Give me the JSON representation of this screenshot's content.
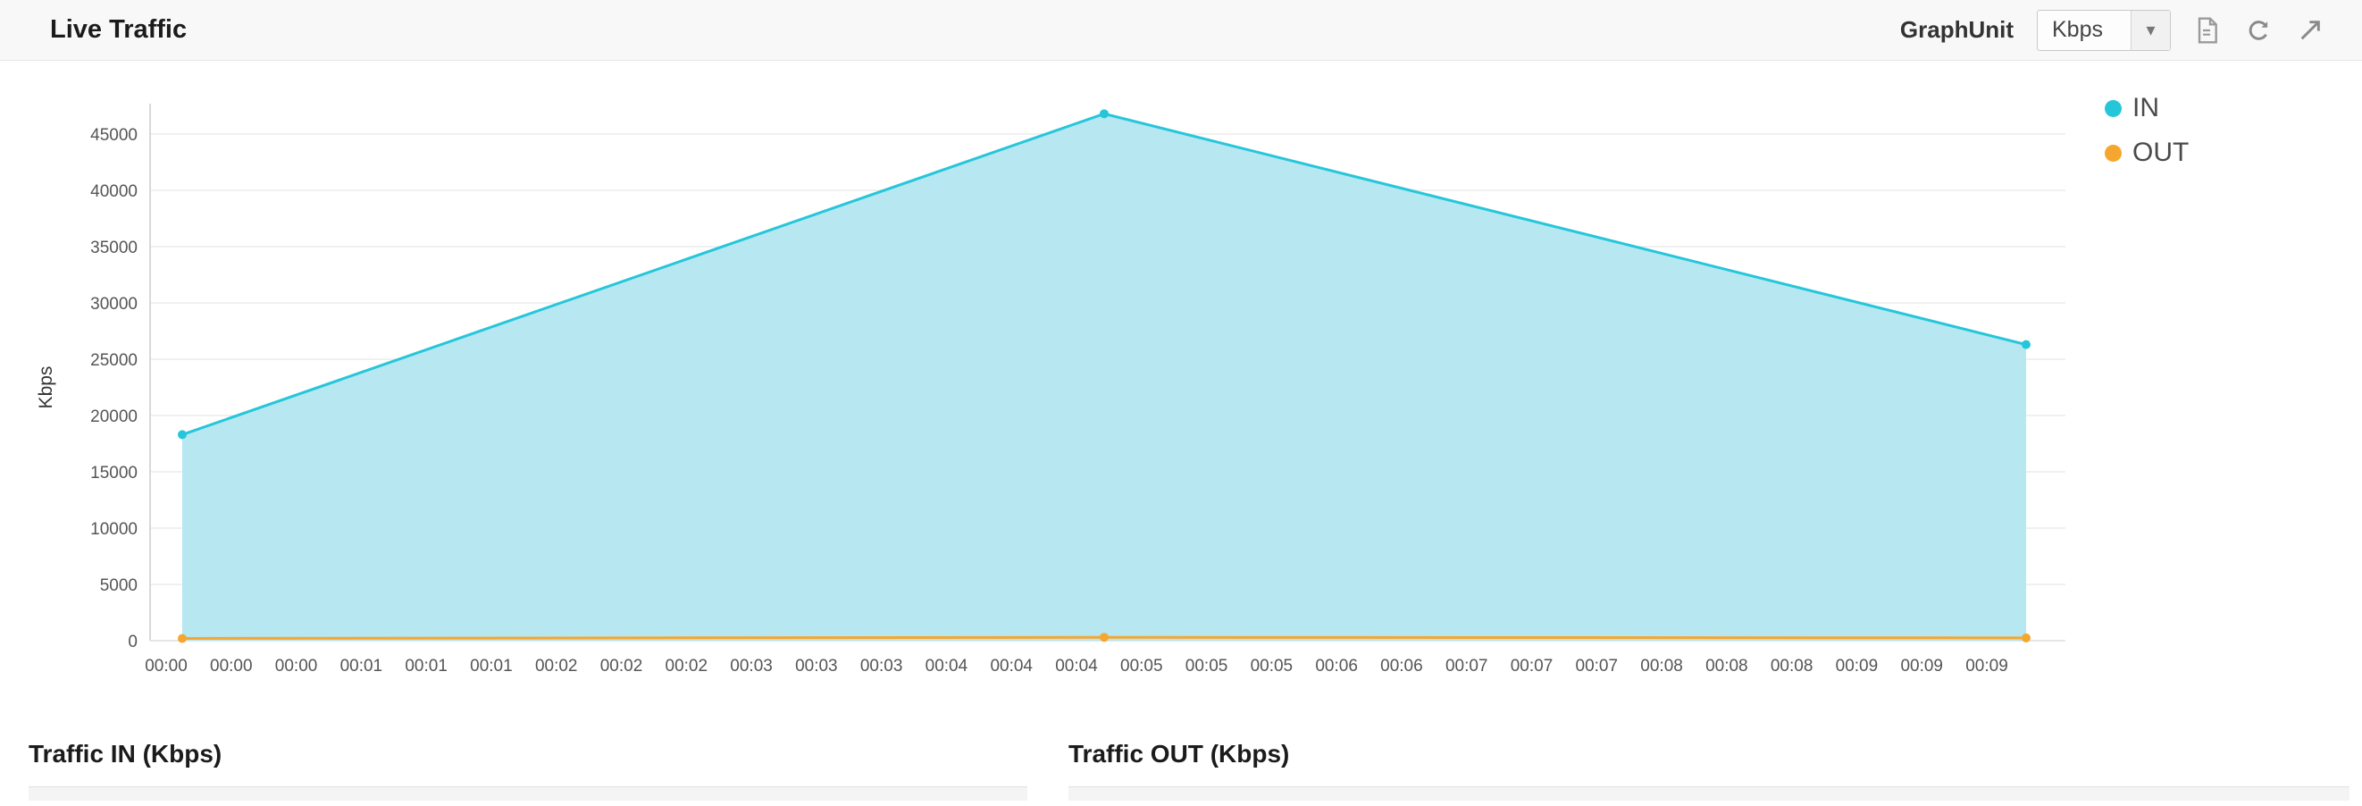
{
  "header": {
    "title": "Live Traffic",
    "graph_unit_label": "GraphUnit",
    "graph_unit_value": "Kbps",
    "dropdown_caret": "▾"
  },
  "chart_data": {
    "type": "area",
    "title": "Live Traffic",
    "ylabel": "Kbps",
    "xlabel": "",
    "ylim": [
      0,
      50000
    ],
    "y_ticks": [
      0,
      5000,
      10000,
      15000,
      20000,
      25000,
      30000,
      35000,
      40000,
      45000
    ],
    "grid": "horizontal",
    "legend_position": "right",
    "x_tick_labels": [
      "00:00",
      "00:00",
      "00:00",
      "00:01",
      "00:01",
      "00:01",
      "00:02",
      "00:02",
      "00:02",
      "00:03",
      "00:03",
      "00:03",
      "00:04",
      "00:04",
      "00:04",
      "00:05",
      "00:05",
      "00:05",
      "00:06",
      "00:06",
      "00:07",
      "00:07",
      "00:07",
      "00:08",
      "00:08",
      "00:08",
      "00:09",
      "00:09",
      "00:09"
    ],
    "series": [
      {
        "name": "IN",
        "color": "#26C6DA",
        "fill": "#B7E7F1",
        "points": [
          {
            "t": 0.0,
            "time": "00:00",
            "v": 18300
          },
          {
            "t": 0.5,
            "time": "00:04",
            "v": 46800
          },
          {
            "t": 1.0,
            "time": "00:09",
            "v": 26300
          }
        ]
      },
      {
        "name": "OUT",
        "color": "#F5A62F",
        "fill": "none",
        "points": [
          {
            "t": 0.0,
            "time": "00:00",
            "v": 200
          },
          {
            "t": 0.5,
            "time": "00:04",
            "v": 300
          },
          {
            "t": 1.0,
            "time": "00:09",
            "v": 250
          }
        ]
      }
    ]
  },
  "bottom": {
    "traffic_in_title": "Traffic IN (Kbps)",
    "traffic_out_title": "Traffic OUT (Kbps)"
  }
}
